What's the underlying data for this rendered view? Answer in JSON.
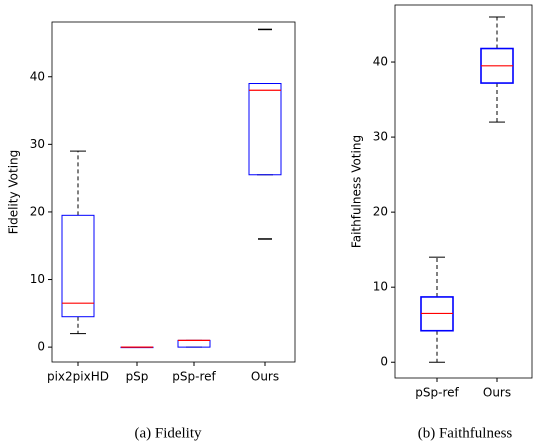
{
  "chart_data": [
    {
      "type": "box",
      "caption": "(a) Fidelity",
      "ylabel": "Fidelity Voting",
      "categories": [
        "pix2pixHD",
        "pSp",
        "pSp-ref",
        "Ours"
      ],
      "boxes": [
        {
          "whislo": 2,
          "q1": 4.5,
          "med": 6.5,
          "q3": 19.5,
          "whishi": 29,
          "fliers": []
        },
        {
          "whislo": 0,
          "q1": 0,
          "med": 0,
          "q3": 0,
          "whishi": 0,
          "fliers": []
        },
        {
          "whislo": 0,
          "q1": 0,
          "med": 1,
          "q3": 1,
          "whishi": 1,
          "fliers": []
        },
        {
          "whislo": 25.5,
          "q1": 25.5,
          "med": 38,
          "q3": 39,
          "whishi": 39,
          "fliers": [
            47,
            16
          ]
        }
      ],
      "box_color": "#0000ff",
      "median_color": "#ff0000",
      "ylim": [
        -2.2,
        48.1
      ],
      "yticks": [
        0,
        10,
        20,
        30,
        40
      ]
    },
    {
      "type": "box",
      "caption": "(b) Faithfulness",
      "ylabel": "Faithfulness Voting",
      "categories": [
        "pSp-ref",
        "Ours"
      ],
      "boxes": [
        {
          "whislo": 0,
          "q1": 4.2,
          "med": 6.5,
          "q3": 8.7,
          "whishi": 14,
          "fliers": []
        },
        {
          "whislo": 32,
          "q1": 37.2,
          "med": 39.5,
          "q3": 41.8,
          "whishi": 46,
          "fliers": []
        }
      ],
      "box_color": "#0000ff",
      "median_color": "#ff0000",
      "ylim": [
        -2.1,
        47.6
      ],
      "yticks": [
        0,
        10,
        20,
        30,
        40
      ]
    }
  ]
}
